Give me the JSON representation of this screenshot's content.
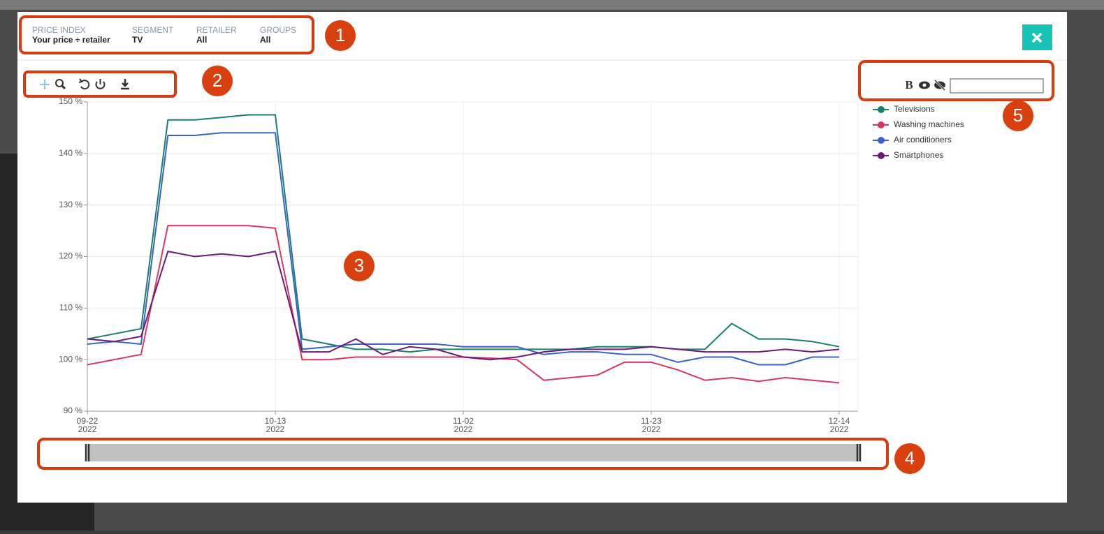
{
  "filters": [
    {
      "label": "PRICE INDEX",
      "value": "Your price ÷ retailer"
    },
    {
      "label": "SEGMENT",
      "value": "TV"
    },
    {
      "label": "RETAILER",
      "value": "All"
    },
    {
      "label": "GROUPS",
      "value": "All"
    }
  ],
  "legend_tools": {
    "bold": "B"
  },
  "annotations": [
    "1",
    "2",
    "3",
    "4",
    "5"
  ],
  "chart_data": {
    "type": "line",
    "categories": [
      [
        "09-22",
        "2022"
      ],
      null,
      null,
      null,
      null,
      null,
      null,
      [
        "10-13",
        "2022"
      ],
      null,
      null,
      null,
      null,
      null,
      null,
      [
        "11-02",
        "2022"
      ],
      null,
      null,
      null,
      null,
      null,
      null,
      [
        "11-23",
        "2022"
      ],
      null,
      null,
      null,
      null,
      null,
      null,
      [
        "12-14",
        "2022"
      ]
    ],
    "series": [
      {
        "name": "Televisions",
        "color": "#1a7f6e",
        "values": [
          104,
          105,
          106,
          146.5,
          146.5,
          147,
          147.5,
          147.5,
          104,
          103,
          102,
          102,
          101.5,
          102,
          102,
          102,
          102,
          102,
          102,
          102.5,
          102.5,
          102.5,
          102,
          102,
          107,
          104,
          104,
          103.5,
          102.5
        ]
      },
      {
        "name": "Washing machines",
        "color": "#d6375e",
        "values": [
          99,
          100,
          101,
          126,
          126,
          126,
          126,
          125.5,
          100,
          100,
          100.5,
          100.5,
          100.5,
          100.5,
          100.5,
          100.3,
          100,
          96,
          96.5,
          97,
          99.5,
          99.5,
          98,
          96,
          96.5,
          95.8,
          96.5,
          96,
          95.5
        ]
      },
      {
        "name": "Air conditioners",
        "color": "#3a63c4",
        "values": [
          103,
          103.5,
          103,
          143.5,
          143.5,
          144,
          144,
          144,
          102,
          102.5,
          103,
          103,
          103,
          103,
          102.5,
          102.5,
          102.5,
          101,
          101.5,
          101.5,
          101,
          101,
          99.5,
          100.5,
          100.5,
          99,
          99,
          100.5,
          100.5
        ]
      },
      {
        "name": "Smartphones",
        "color": "#6b1a78",
        "values": [
          104,
          103.5,
          104.5,
          121,
          120,
          120.5,
          120,
          121,
          101.5,
          101.5,
          104,
          101,
          102.5,
          102,
          100.5,
          100,
          100.5,
          101.5,
          102,
          102,
          102,
          102.5,
          102,
          101.5,
          101.5,
          101.5,
          102,
          101.5,
          102
        ]
      }
    ],
    "ylim": [
      90,
      150
    ],
    "yticks": [
      {
        "value": 90,
        "label": "90 %"
      },
      {
        "value": 100,
        "label": "100 %"
      },
      {
        "value": 110,
        "label": "110 %"
      },
      {
        "value": 120,
        "label": "120 %"
      },
      {
        "value": 130,
        "label": "130 %"
      },
      {
        "value": 140,
        "label": "140 %"
      },
      {
        "value": 150,
        "label": "150 %"
      }
    ],
    "grid": true
  }
}
